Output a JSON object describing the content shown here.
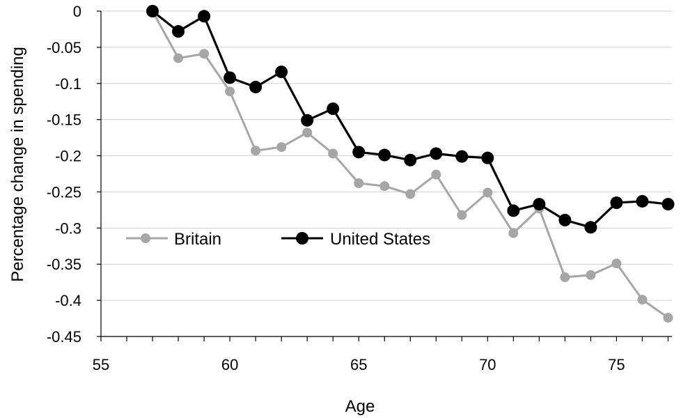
{
  "chart_data": {
    "type": "line",
    "xlabel": "Age",
    "ylabel": "Percentage change in spending",
    "xlim": [
      55,
      77
    ],
    "ylim": [
      -0.45,
      0
    ],
    "x_ticks": [
      55,
      60,
      65,
      70,
      75
    ],
    "y_ticks": [
      0,
      -0.05,
      -0.1,
      -0.15,
      -0.2,
      -0.25,
      -0.3,
      -0.35,
      -0.4,
      -0.45
    ],
    "x_tick_labels": [
      "55",
      "60",
      "65",
      "70",
      "75"
    ],
    "y_tick_labels": [
      "0",
      "-0.05",
      "-0.1",
      "-0.15",
      "-0.2",
      "-0.25",
      "-0.3",
      "-0.35",
      "-0.4",
      "-0.45"
    ],
    "grid": "horizontal",
    "legend_position": "lower-left",
    "x": [
      57,
      58,
      59,
      60,
      61,
      62,
      63,
      64,
      65,
      66,
      67,
      68,
      69,
      70,
      71,
      72,
      73,
      74,
      75,
      76,
      77
    ],
    "series": [
      {
        "name": "Britain",
        "color": "#a6a6a6",
        "values": [
          0,
          -0.065,
          -0.059,
          -0.111,
          -0.193,
          -0.188,
          -0.168,
          -0.197,
          -0.238,
          -0.242,
          -0.253,
          -0.226,
          -0.282,
          -0.251,
          -0.307,
          -0.273,
          -0.368,
          -0.365,
          -0.349,
          -0.399,
          -0.424
        ]
      },
      {
        "name": "United States",
        "color": "#000000",
        "values": [
          0,
          -0.028,
          -0.007,
          -0.092,
          -0.105,
          -0.084,
          -0.151,
          -0.135,
          -0.195,
          -0.199,
          -0.206,
          -0.197,
          -0.201,
          -0.203,
          -0.276,
          -0.267,
          -0.289,
          -0.299,
          -0.265,
          -0.263,
          -0.267
        ]
      }
    ]
  }
}
